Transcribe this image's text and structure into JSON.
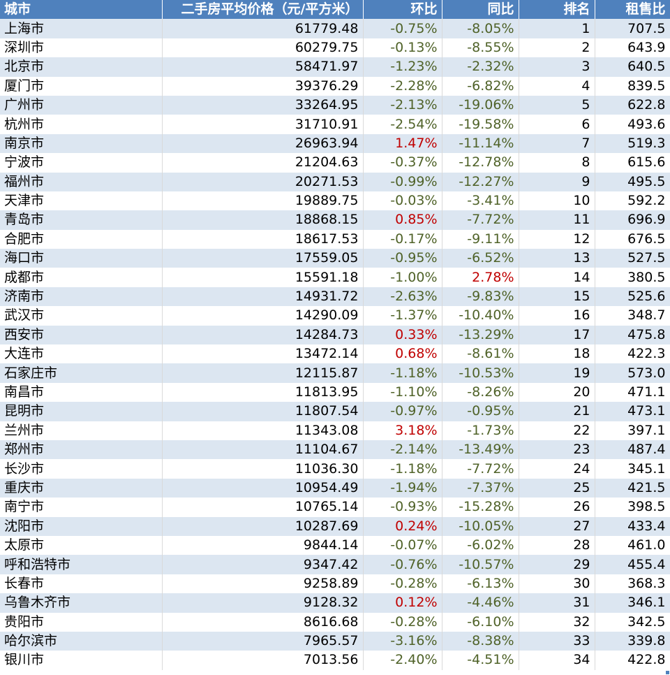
{
  "headers": {
    "city": "城市",
    "price": "二手房平均价格（元/平方米）",
    "mom": "环比",
    "yoy": "同比",
    "rank": "排名",
    "ratio": "租售比"
  },
  "colors": {
    "header_bg": "#4f81bd",
    "band": "#dce6f1",
    "negative": "#4f6228",
    "positive": "#c00000"
  },
  "rows": [
    {
      "city": "上海市",
      "price": "61779.48",
      "mom": "-0.75%",
      "yoy": "-8.05%",
      "rank": "1",
      "ratio": "707.5"
    },
    {
      "city": "深圳市",
      "price": "60279.75",
      "mom": "-0.13%",
      "yoy": "-8.55%",
      "rank": "2",
      "ratio": "643.9"
    },
    {
      "city": "北京市",
      "price": "58471.97",
      "mom": "-1.23%",
      "yoy": "-2.32%",
      "rank": "3",
      "ratio": "640.5"
    },
    {
      "city": "厦门市",
      "price": "39376.29",
      "mom": "-2.28%",
      "yoy": "-6.82%",
      "rank": "4",
      "ratio": "839.5"
    },
    {
      "city": "广州市",
      "price": "33264.95",
      "mom": "-2.13%",
      "yoy": "-19.06%",
      "rank": "5",
      "ratio": "622.8"
    },
    {
      "city": "杭州市",
      "price": "31710.91",
      "mom": "-2.54%",
      "yoy": "-19.58%",
      "rank": "6",
      "ratio": "493.6"
    },
    {
      "city": "南京市",
      "price": "26963.94",
      "mom": "1.47%",
      "yoy": "-11.14%",
      "rank": "7",
      "ratio": "519.3"
    },
    {
      "city": "宁波市",
      "price": "21204.63",
      "mom": "-0.37%",
      "yoy": "-12.78%",
      "rank": "8",
      "ratio": "615.6"
    },
    {
      "city": "福州市",
      "price": "20271.53",
      "mom": "-0.99%",
      "yoy": "-12.27%",
      "rank": "9",
      "ratio": "495.5"
    },
    {
      "city": "天津市",
      "price": "19889.75",
      "mom": "-0.03%",
      "yoy": "-3.41%",
      "rank": "10",
      "ratio": "592.2"
    },
    {
      "city": "青岛市",
      "price": "18868.15",
      "mom": "0.85%",
      "yoy": "-7.72%",
      "rank": "11",
      "ratio": "696.9"
    },
    {
      "city": "合肥市",
      "price": "18617.53",
      "mom": "-0.17%",
      "yoy": "-9.11%",
      "rank": "12",
      "ratio": "676.5"
    },
    {
      "city": "海口市",
      "price": "17559.05",
      "mom": "-0.95%",
      "yoy": "-6.52%",
      "rank": "13",
      "ratio": "527.5"
    },
    {
      "city": "成都市",
      "price": "15591.18",
      "mom": "-1.00%",
      "yoy": "2.78%",
      "rank": "14",
      "ratio": "380.5"
    },
    {
      "city": "济南市",
      "price": "14931.72",
      "mom": "-2.63%",
      "yoy": "-9.83%",
      "rank": "15",
      "ratio": "525.6"
    },
    {
      "city": "武汉市",
      "price": "14290.09",
      "mom": "-1.37%",
      "yoy": "-10.40%",
      "rank": "16",
      "ratio": "348.7"
    },
    {
      "city": "西安市",
      "price": "14284.73",
      "mom": "0.33%",
      "yoy": "-13.29%",
      "rank": "17",
      "ratio": "475.8"
    },
    {
      "city": "大连市",
      "price": "13472.14",
      "mom": "0.68%",
      "yoy": "-8.61%",
      "rank": "18",
      "ratio": "422.3"
    },
    {
      "city": "石家庄市",
      "price": "12115.87",
      "mom": "-1.18%",
      "yoy": "-10.53%",
      "rank": "19",
      "ratio": "573.0"
    },
    {
      "city": "南昌市",
      "price": "11813.95",
      "mom": "-1.10%",
      "yoy": "-8.26%",
      "rank": "20",
      "ratio": "471.1"
    },
    {
      "city": "昆明市",
      "price": "11807.54",
      "mom": "-0.97%",
      "yoy": "-0.95%",
      "rank": "21",
      "ratio": "473.1"
    },
    {
      "city": "兰州市",
      "price": "11343.08",
      "mom": "3.18%",
      "yoy": "-1.73%",
      "rank": "22",
      "ratio": "397.1"
    },
    {
      "city": "郑州市",
      "price": "11104.67",
      "mom": "-2.14%",
      "yoy": "-13.49%",
      "rank": "23",
      "ratio": "487.4"
    },
    {
      "city": "长沙市",
      "price": "11036.30",
      "mom": "-1.18%",
      "yoy": "-7.72%",
      "rank": "24",
      "ratio": "345.1"
    },
    {
      "city": "重庆市",
      "price": "10954.49",
      "mom": "-1.94%",
      "yoy": "-7.37%",
      "rank": "25",
      "ratio": "421.5"
    },
    {
      "city": "南宁市",
      "price": "10765.14",
      "mom": "-0.93%",
      "yoy": "-15.28%",
      "rank": "26",
      "ratio": "398.5"
    },
    {
      "city": "沈阳市",
      "price": "10287.69",
      "mom": "0.24%",
      "yoy": "-10.05%",
      "rank": "27",
      "ratio": "433.4"
    },
    {
      "city": "太原市",
      "price": "9844.14",
      "mom": "-0.07%",
      "yoy": "-6.02%",
      "rank": "28",
      "ratio": "461.0"
    },
    {
      "city": "呼和浩特市",
      "price": "9347.42",
      "mom": "-0.76%",
      "yoy": "-10.57%",
      "rank": "29",
      "ratio": "455.4"
    },
    {
      "city": "长春市",
      "price": "9258.89",
      "mom": "-0.28%",
      "yoy": "-6.13%",
      "rank": "30",
      "ratio": "368.3"
    },
    {
      "city": "乌鲁木齐市",
      "price": "9128.32",
      "mom": "0.12%",
      "yoy": "-4.46%",
      "rank": "31",
      "ratio": "346.1"
    },
    {
      "city": "贵阳市",
      "price": "8616.68",
      "mom": "-0.28%",
      "yoy": "-6.10%",
      "rank": "32",
      "ratio": "342.5"
    },
    {
      "city": "哈尔滨市",
      "price": "7965.57",
      "mom": "-3.16%",
      "yoy": "-8.38%",
      "rank": "33",
      "ratio": "339.8"
    },
    {
      "city": "银川市",
      "price": "7013.56",
      "mom": "-2.40%",
      "yoy": "-4.51%",
      "rank": "34",
      "ratio": "422.8"
    }
  ]
}
